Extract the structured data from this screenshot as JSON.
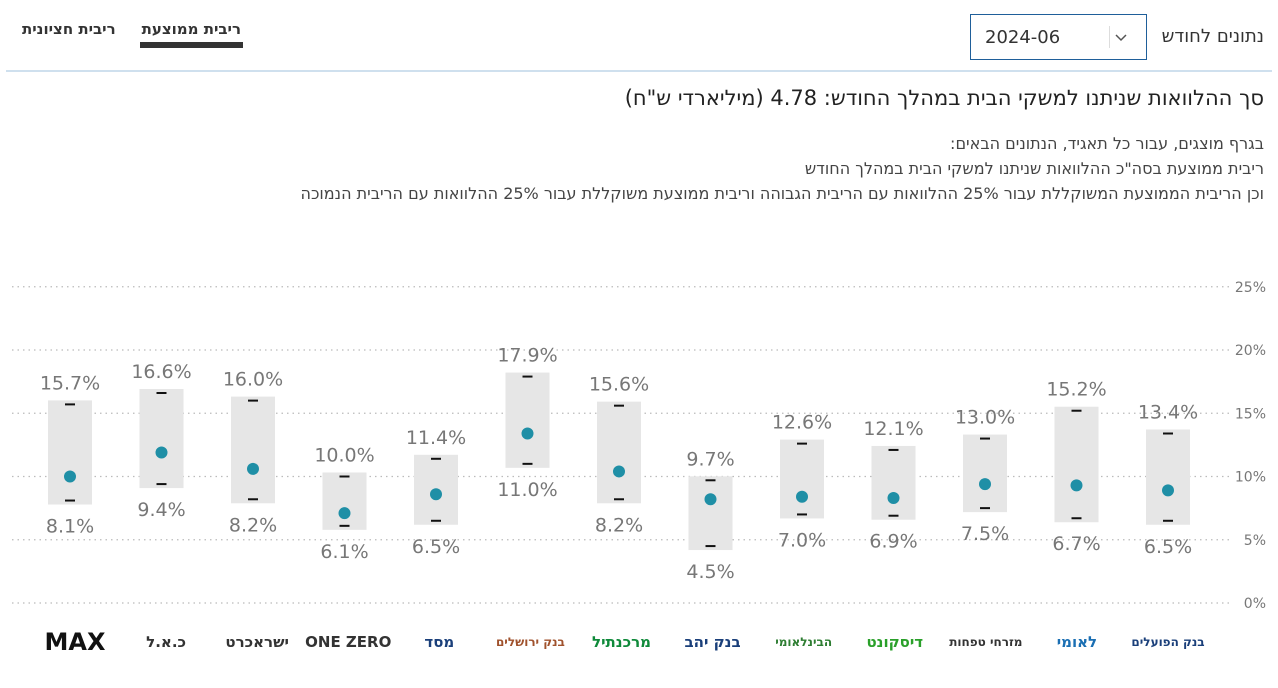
{
  "tabs": {
    "average": "ריבית ממוצעת",
    "median": "ריבית חציונית"
  },
  "month_filter": {
    "label": "נתונים לחודש",
    "value": "2024-06"
  },
  "headline": "סך ההלוואות שניתנו למשקי הבית במהלך החודש: 4.78 (מיליארדי ש\"ח)",
  "description": [
    "בגרף מוצגים, עבור כל תאגיד, הנתונים הבאים:",
    "ריבית ממוצעת בסה\"כ ההלוואות שניתנו למשקי הבית במהלך החודש",
    "וכן הריבית הממוצעת המשוקללת עבור 25% ההלוואות עם הריבית הגבוהה וריבית ממוצעת משוקללת עבור 25% ההלוואות עם הריבית הנמוכה"
  ],
  "colors": {
    "dot": "#1f8fa6",
    "range_box": "#e6e6e6",
    "grid": "#bbbbbb",
    "label": "#777777",
    "tab_underline": "#333333",
    "select_border": "#1f5f9a"
  },
  "chart_data": {
    "type": "range-dot",
    "y_ticks": [
      "0%",
      "5%",
      "10%",
      "15%",
      "20%",
      "25%"
    ],
    "ylim": [
      0,
      25
    ],
    "grid": true,
    "high_labels": [
      "15.7%",
      "16.6%",
      "16.0%",
      "10.0%",
      "11.4%",
      "17.9%",
      "15.6%",
      "9.7%",
      "12.6%",
      "12.1%",
      "13.0%",
      "15.2%",
      "13.4%"
    ],
    "low_labels": [
      "8.1%",
      "9.4%",
      "8.2%",
      "6.1%",
      "6.5%",
      "11.0%",
      "8.2%",
      "4.5%",
      "7.0%",
      "6.9%",
      "7.5%",
      "6.7%",
      "6.5%"
    ],
    "high": [
      15.7,
      16.6,
      16.0,
      10.0,
      11.4,
      17.9,
      15.6,
      9.7,
      12.6,
      12.1,
      13.0,
      15.2,
      13.4
    ],
    "low": [
      8.1,
      9.4,
      8.2,
      6.1,
      6.5,
      11.0,
      8.2,
      4.5,
      7.0,
      6.9,
      7.5,
      6.7,
      6.5
    ],
    "average": [
      10.0,
      11.9,
      10.6,
      7.1,
      8.6,
      13.4,
      10.4,
      8.2,
      8.4,
      8.3,
      9.4,
      9.3,
      8.9
    ]
  },
  "logos": [
    {
      "name": "max-logo",
      "text": "MAX",
      "color": "#111111"
    },
    {
      "name": "cal-logo",
      "text": "כ.א.ל",
      "color": "#333333"
    },
    {
      "name": "isracard-logo",
      "text": "ישראכרט",
      "color": "#333333"
    },
    {
      "name": "one-zero-logo",
      "text": "ONE ZERO",
      "color": "#333333"
    },
    {
      "name": "masad-logo",
      "text": "מסד",
      "color": "#1a3f7a"
    },
    {
      "name": "bank-jerusalem-logo",
      "text": "בנק ירושלים",
      "color": "#a0522d"
    },
    {
      "name": "mercantile-logo",
      "text": "מרכנתיל",
      "color": "#0f8a3a"
    },
    {
      "name": "bank-yahav-logo",
      "text": "בנק יהב",
      "color": "#1a3f7a"
    },
    {
      "name": "beinleumi-logo",
      "text": "הבינלאומי",
      "color": "#2e7d32"
    },
    {
      "name": "discount-logo",
      "text": "דיסקונט",
      "color": "#2aa02a"
    },
    {
      "name": "mizrahi-tefahot-logo",
      "text": "מזרחי טפחות",
      "color": "#333333"
    },
    {
      "name": "leumi-logo",
      "text": "לאומי",
      "color": "#1b6fb3"
    },
    {
      "name": "bank-hapoalim-logo",
      "text": "בנק הפועלים",
      "color": "#1a3f7a"
    }
  ]
}
